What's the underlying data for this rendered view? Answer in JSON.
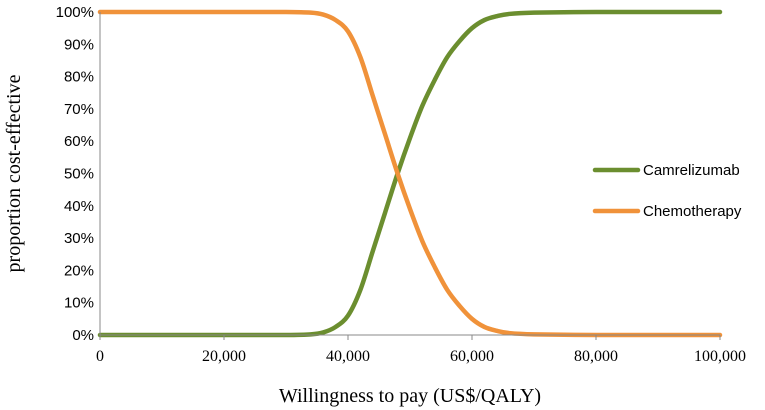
{
  "chart_data": {
    "type": "line",
    "title": "",
    "xlabel": "Willingness to pay (US$/QALY)",
    "ylabel": "proportion cost-effective",
    "xlim": [
      0,
      100000
    ],
    "ylim": [
      0,
      100
    ],
    "x_ticks": [
      0,
      20000,
      40000,
      60000,
      80000,
      100000
    ],
    "x_tick_labels": [
      "0",
      "20,000",
      "40,000",
      "60,000",
      "80,000",
      "100,000"
    ],
    "y_ticks": [
      0,
      10,
      20,
      30,
      40,
      50,
      60,
      70,
      80,
      90,
      100
    ],
    "y_tick_labels": [
      "0%",
      "10%",
      "20%",
      "30%",
      "40%",
      "50%",
      "60%",
      "70%",
      "80%",
      "90%",
      "100%"
    ],
    "grid": false,
    "legend_position": "right",
    "x": [
      0,
      10000,
      20000,
      30000,
      34000,
      36000,
      38000,
      40000,
      42000,
      44000,
      46000,
      48000,
      50000,
      52000,
      54000,
      56000,
      58000,
      60000,
      62000,
      64000,
      66000,
      70000,
      80000,
      90000,
      100000
    ],
    "series": [
      {
        "name": "Camrelizumab",
        "color": "#6b8e2f",
        "values": [
          0,
          0,
          0,
          0,
          0.2,
          0.8,
          2.5,
          6,
          14,
          26,
          38,
          50,
          61,
          71,
          79,
          86,
          91,
          95,
          97.5,
          98.7,
          99.4,
          99.8,
          100,
          100,
          100
        ]
      },
      {
        "name": "Chemotherapy",
        "color": "#f0923a",
        "values": [
          100,
          100,
          100,
          100,
          99.8,
          99.2,
          97.5,
          94,
          86,
          74,
          62,
          50,
          39,
          29,
          21,
          14,
          9,
          5,
          2.5,
          1.3,
          0.6,
          0.2,
          0,
          0,
          0
        ]
      }
    ]
  }
}
